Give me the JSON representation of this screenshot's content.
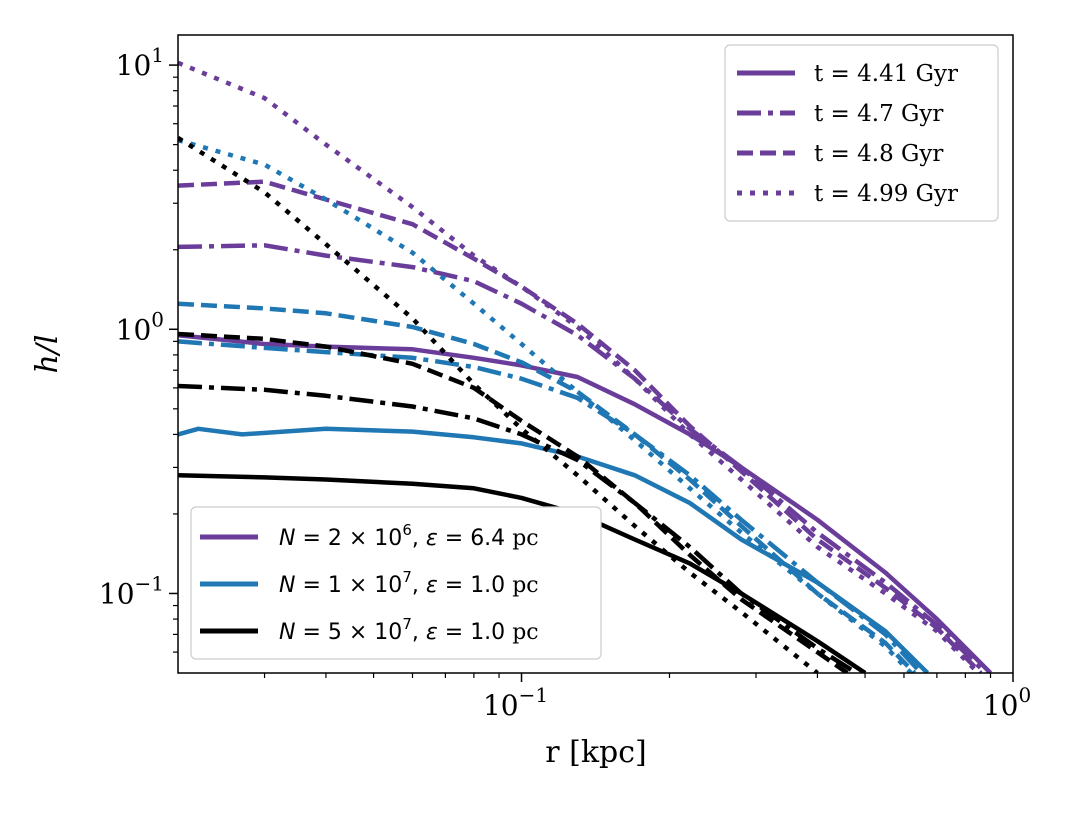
{
  "chart_data": {
    "type": "line",
    "scale": "log-log",
    "xlabel": "r [kpc]",
    "ylabel": "h/l",
    "xlim": [
      0.02,
      1.0
    ],
    "ylim": [
      0.05,
      13
    ],
    "x_ticks": [
      {
        "value": 0.1,
        "base": "10",
        "exp": "−1"
      },
      {
        "value": 1.0,
        "base": "10",
        "exp": "0"
      }
    ],
    "y_ticks": [
      {
        "value": 0.1,
        "base": "10",
        "exp": "−1"
      },
      {
        "value": 1.0,
        "base": "10",
        "exp": "0"
      },
      {
        "value": 10,
        "base": "10",
        "exp": "1"
      }
    ],
    "colors": {
      "purple": "#6a3d9a",
      "blue": "#1f77b4",
      "black": "#000000"
    },
    "legend_time": {
      "placement": "top-right",
      "entries": [
        {
          "label": "t = 4.41 Gyr",
          "style": "solid"
        },
        {
          "label": "t = 4.7 Gyr",
          "style": "dashdot"
        },
        {
          "label": "t = 4.8 Gyr",
          "style": "dashed"
        },
        {
          "label": "t = 4.99 Gyr",
          "style": "dotted"
        }
      ]
    },
    "legend_res": {
      "placement": "bottom-left",
      "entries": [
        {
          "color": "purple",
          "n_mant": "2",
          "n_exp": "6",
          "eps": "6.4",
          "unit": "pc"
        },
        {
          "color": "blue",
          "n_mant": "1",
          "n_exp": "7",
          "eps": "1.0",
          "unit": "pc"
        },
        {
          "color": "black",
          "n_mant": "5",
          "n_exp": "7",
          "eps": "1.0",
          "unit": "pc"
        }
      ]
    },
    "series": [
      {
        "name": "N=2e6, t=4.41",
        "color": "purple",
        "style": "solid",
        "x": [
          0.02,
          0.03,
          0.04,
          0.06,
          0.08,
          0.1,
          0.13,
          0.17,
          0.22,
          0.28,
          0.4,
          0.55,
          0.7,
          0.9
        ],
        "y": [
          0.95,
          0.88,
          0.86,
          0.84,
          0.78,
          0.73,
          0.66,
          0.52,
          0.4,
          0.3,
          0.19,
          0.12,
          0.08,
          0.05
        ]
      },
      {
        "name": "N=2e6, t=4.7",
        "color": "purple",
        "style": "dashdot",
        "x": [
          0.02,
          0.03,
          0.04,
          0.06,
          0.08,
          0.1,
          0.13,
          0.17,
          0.22,
          0.28,
          0.4,
          0.55,
          0.7,
          0.88
        ],
        "y": [
          2.05,
          2.08,
          1.9,
          1.72,
          1.52,
          1.25,
          0.95,
          0.65,
          0.42,
          0.3,
          0.17,
          0.11,
          0.076,
          0.05
        ]
      },
      {
        "name": "N=2e6, t=4.8",
        "color": "purple",
        "style": "dashed",
        "x": [
          0.02,
          0.03,
          0.04,
          0.06,
          0.08,
          0.1,
          0.13,
          0.17,
          0.22,
          0.28,
          0.4,
          0.55,
          0.7,
          0.86
        ],
        "y": [
          3.5,
          3.62,
          3.1,
          2.5,
          1.85,
          1.45,
          1.05,
          0.7,
          0.43,
          0.29,
          0.16,
          0.105,
          0.074,
          0.05
        ]
      },
      {
        "name": "N=2e6, t=4.99",
        "color": "purple",
        "style": "dotted",
        "x": [
          0.02,
          0.03,
          0.04,
          0.06,
          0.08,
          0.1,
          0.13,
          0.17,
          0.22,
          0.28,
          0.4,
          0.55,
          0.7,
          0.85
        ],
        "y": [
          10.2,
          7.5,
          5.0,
          2.9,
          1.9,
          1.45,
          1.02,
          0.65,
          0.4,
          0.27,
          0.15,
          0.1,
          0.072,
          0.05
        ]
      },
      {
        "name": "N=1e7, t=4.41",
        "color": "blue",
        "style": "solid",
        "x": [
          0.02,
          0.022,
          0.027,
          0.04,
          0.06,
          0.08,
          0.1,
          0.13,
          0.17,
          0.22,
          0.28,
          0.4,
          0.55,
          0.67
        ],
        "y": [
          0.4,
          0.42,
          0.4,
          0.42,
          0.41,
          0.39,
          0.37,
          0.33,
          0.28,
          0.22,
          0.16,
          0.11,
          0.072,
          0.05
        ]
      },
      {
        "name": "N=1e7, t=4.7",
        "color": "blue",
        "style": "dashdot",
        "x": [
          0.02,
          0.03,
          0.04,
          0.06,
          0.08,
          0.1,
          0.13,
          0.17,
          0.22,
          0.28,
          0.4,
          0.55,
          0.65
        ],
        "y": [
          0.9,
          0.85,
          0.82,
          0.78,
          0.72,
          0.65,
          0.55,
          0.4,
          0.28,
          0.19,
          0.11,
          0.07,
          0.05
        ]
      },
      {
        "name": "N=1e7, t=4.8",
        "color": "blue",
        "style": "dashed",
        "x": [
          0.02,
          0.03,
          0.04,
          0.06,
          0.08,
          0.1,
          0.13,
          0.17,
          0.22,
          0.28,
          0.4,
          0.55,
          0.63
        ],
        "y": [
          1.25,
          1.2,
          1.15,
          1.02,
          0.88,
          0.75,
          0.58,
          0.4,
          0.27,
          0.18,
          0.1,
          0.065,
          0.05
        ]
      },
      {
        "name": "N=1e7, t=4.99",
        "color": "blue",
        "style": "dotted",
        "x": [
          0.02,
          0.03,
          0.04,
          0.06,
          0.08,
          0.1,
          0.13,
          0.17,
          0.22,
          0.28,
          0.4,
          0.55,
          0.62
        ],
        "y": [
          5.2,
          4.2,
          3.1,
          1.95,
          1.25,
          0.88,
          0.58,
          0.38,
          0.25,
          0.17,
          0.1,
          0.063,
          0.05
        ]
      },
      {
        "name": "N=5e7, t=4.41",
        "color": "black",
        "style": "solid",
        "x": [
          0.02,
          0.03,
          0.04,
          0.06,
          0.08,
          0.1,
          0.13,
          0.17,
          0.22,
          0.28,
          0.4,
          0.5
        ],
        "y": [
          0.28,
          0.275,
          0.27,
          0.26,
          0.25,
          0.23,
          0.2,
          0.16,
          0.13,
          0.1,
          0.066,
          0.05
        ]
      },
      {
        "name": "N=5e7, t=4.7",
        "color": "black",
        "style": "dashdot",
        "x": [
          0.02,
          0.03,
          0.04,
          0.06,
          0.08,
          0.1,
          0.13,
          0.17,
          0.22,
          0.28,
          0.4,
          0.48
        ],
        "y": [
          0.61,
          0.59,
          0.56,
          0.51,
          0.46,
          0.4,
          0.32,
          0.22,
          0.15,
          0.1,
          0.062,
          0.05
        ]
      },
      {
        "name": "N=5e7, t=4.8",
        "color": "black",
        "style": "dashed",
        "x": [
          0.02,
          0.03,
          0.04,
          0.06,
          0.08,
          0.1,
          0.13,
          0.17,
          0.22,
          0.28,
          0.4,
          0.46
        ],
        "y": [
          0.96,
          0.92,
          0.86,
          0.74,
          0.6,
          0.45,
          0.33,
          0.22,
          0.14,
          0.095,
          0.06,
          0.05
        ]
      },
      {
        "name": "N=5e7, t=4.99",
        "color": "black",
        "style": "dotted",
        "x": [
          0.02,
          0.03,
          0.04,
          0.06,
          0.08,
          0.1,
          0.13,
          0.17,
          0.22,
          0.28,
          0.4
        ],
        "y": [
          5.3,
          3.3,
          2.1,
          1.1,
          0.62,
          0.42,
          0.28,
          0.18,
          0.12,
          0.085,
          0.05
        ]
      }
    ]
  }
}
